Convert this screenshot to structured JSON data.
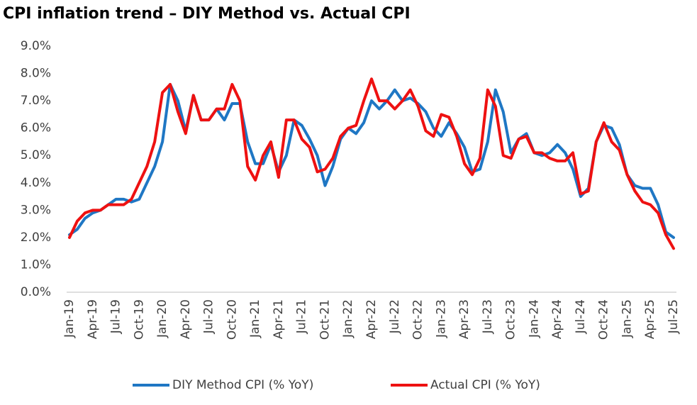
{
  "chart_data": {
    "type": "line",
    "title": "CPI inflation trend – DIY Method vs. Actual CPI",
    "categories": [
      "Jan-19",
      null,
      null,
      "Apr-19",
      null,
      null,
      "Jul-19",
      null,
      null,
      "Oct-19",
      null,
      null,
      "Jan-20",
      null,
      null,
      "Apr-20",
      null,
      null,
      "Jul-20",
      null,
      null,
      "Oct-20",
      null,
      null,
      "Jan-21",
      null,
      null,
      "Apr-21",
      null,
      null,
      "Jul-21",
      null,
      null,
      "Oct-21",
      null,
      null,
      "Jan-22",
      null,
      null,
      "Apr-22",
      null,
      null,
      "Jul-22",
      null,
      null,
      "Oct-22",
      null,
      null,
      "Jan-23",
      null,
      null,
      "Apr-23",
      null,
      null,
      "Jul-23",
      null,
      null,
      "Oct-23",
      null,
      null,
      "Jan-24",
      null,
      null,
      "Apr-24",
      null,
      null,
      "Jul-24",
      null,
      null,
      "Oct-24",
      null,
      null,
      "Jan-25",
      null,
      null,
      "Apr-25",
      null,
      null,
      "Jul-25"
    ],
    "series": [
      {
        "name": "DIY Method CPI (% YoY)",
        "color": "#1f77c4",
        "values": [
          2.1,
          2.3,
          2.7,
          2.9,
          3.0,
          3.2,
          3.4,
          3.4,
          3.3,
          3.4,
          4.0,
          4.6,
          5.5,
          7.6,
          7.0,
          5.9,
          7.2,
          6.3,
          6.3,
          6.7,
          6.3,
          6.9,
          6.9,
          5.5,
          4.7,
          4.7,
          5.4,
          4.4,
          5.0,
          6.3,
          6.1,
          5.6,
          5.0,
          3.9,
          4.6,
          5.6,
          6.0,
          5.8,
          6.2,
          7.0,
          6.7,
          7.0,
          7.4,
          7.0,
          7.1,
          6.9,
          6.6,
          6.0,
          5.7,
          6.2,
          5.8,
          5.3,
          4.4,
          4.5,
          5.5,
          7.4,
          6.6,
          5.1,
          5.6,
          5.8,
          5.1,
          5.0,
          5.1,
          5.4,
          5.1,
          4.5,
          3.5,
          3.8,
          5.5,
          6.1,
          6.0,
          5.4,
          4.3,
          3.9,
          3.8,
          3.8,
          3.2,
          2.2,
          2.0
        ]
      },
      {
        "name": "Actual CPI (% YoY)",
        "color": "#ee1111",
        "values": [
          2.0,
          2.6,
          2.9,
          3.0,
          3.0,
          3.2,
          3.2,
          3.2,
          3.4,
          4.0,
          4.6,
          5.5,
          7.3,
          7.6,
          6.6,
          5.8,
          7.2,
          6.3,
          6.3,
          6.7,
          6.7,
          7.6,
          7.0,
          4.6,
          4.1,
          5.0,
          5.5,
          4.2,
          6.3,
          6.3,
          5.6,
          5.3,
          4.4,
          4.5,
          4.9,
          5.7,
          6.0,
          6.1,
          7.0,
          7.8,
          7.0,
          7.0,
          6.7,
          7.0,
          7.4,
          6.8,
          5.9,
          5.7,
          6.5,
          6.4,
          5.7,
          4.7,
          4.3,
          4.9,
          7.4,
          6.8,
          5.0,
          4.9,
          5.6,
          5.7,
          5.1,
          5.1,
          4.9,
          4.8,
          4.8,
          5.1,
          3.6,
          3.7,
          5.5,
          6.2,
          5.5,
          5.2,
          4.3,
          3.7,
          3.3,
          3.2,
          2.9,
          2.1,
          1.6
        ]
      }
    ],
    "ylim": [
      0,
      9
    ],
    "yticks": [
      {
        "value": 0,
        "label": "0.0%"
      },
      {
        "value": 1,
        "label": "1.0%"
      },
      {
        "value": 2,
        "label": "2.0%"
      },
      {
        "value": 3,
        "label": "3.0%"
      },
      {
        "value": 4,
        "label": "4.0%"
      },
      {
        "value": 5,
        "label": "5.0%"
      },
      {
        "value": 6,
        "label": "6.0%"
      },
      {
        "value": 7,
        "label": "7.0%"
      },
      {
        "value": 8,
        "label": "8.0%"
      },
      {
        "value": 9,
        "label": "9.0%"
      }
    ],
    "grid": false,
    "legend": "bottom"
  }
}
